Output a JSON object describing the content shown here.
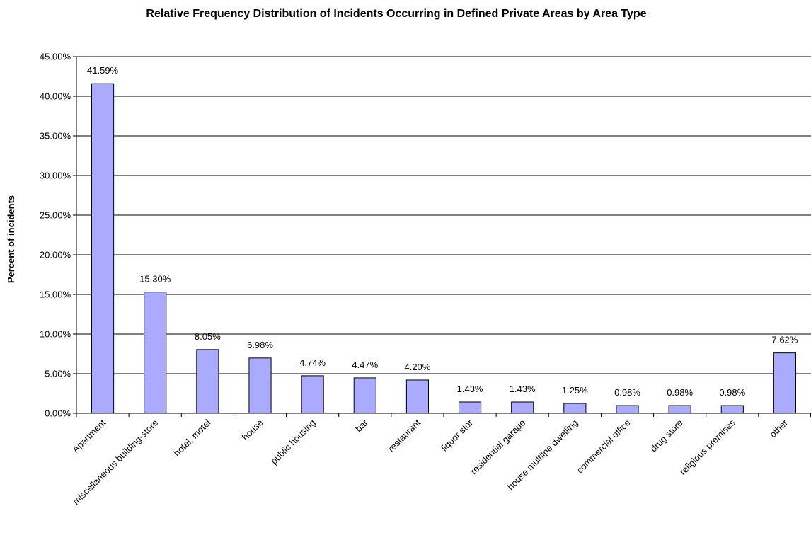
{
  "chart_data": {
    "type": "bar",
    "title": "Relative Frequency Distribution of Incidents Occurring in Defined Private Areas by Area Type",
    "xlabel": "",
    "ylabel": "Percent of incidents",
    "ylim": [
      0,
      45
    ],
    "yticks": [
      "0.00%",
      "5.00%",
      "10.00%",
      "15.00%",
      "20.00%",
      "25.00%",
      "30.00%",
      "35.00%",
      "40.00%",
      "45.00%"
    ],
    "grid": "horizontal",
    "categories": [
      "Apartment",
      "miscellaneous building-store",
      "hotel, motel",
      "house",
      "public housing",
      "bar",
      "restaurant",
      "liquor stor",
      "residential garage",
      "house multilpe dwelling",
      "commercial office",
      "drug store",
      "religious premises",
      "other"
    ],
    "values": [
      41.59,
      15.3,
      8.05,
      6.98,
      4.74,
      4.47,
      4.2,
      1.43,
      1.43,
      1.25,
      0.98,
      0.98,
      0.98,
      7.62
    ],
    "data_labels": [
      "41.59%",
      "15.30%",
      "8.05%",
      "6.98%",
      "4.74%",
      "4.47%",
      "4.20%",
      "1.43%",
      "1.43%",
      "1.25%",
      "0.98%",
      "0.98%",
      "0.98%",
      "7.62%"
    ],
    "bar_color": "#aaaaff"
  }
}
